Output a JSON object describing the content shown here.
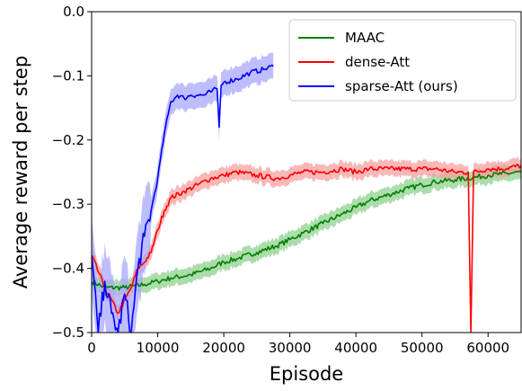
{
  "chart_data": {
    "type": "line",
    "title": "",
    "xlabel": "Episode",
    "ylabel": "Average reward per step",
    "xlim": [
      0,
      65000
    ],
    "ylim": [
      -0.5,
      0.0
    ],
    "xticks": [
      0,
      10000,
      20000,
      30000,
      40000,
      50000,
      60000
    ],
    "xtick_labels": [
      "0",
      "10000",
      "20000",
      "30000",
      "40000",
      "50000",
      "60000"
    ],
    "yticks": [
      -0.5,
      -0.4,
      -0.3,
      -0.2,
      -0.1,
      0.0
    ],
    "ytick_labels": [
      "−0.5",
      "−0.4",
      "−0.3",
      "−0.2",
      "−0.1",
      "0.0"
    ],
    "grid": false,
    "legend_position": "top-right",
    "series": [
      {
        "name": "MAAC",
        "color": "#008000",
        "band_color": "#90d090",
        "x": [
          0,
          2000,
          5000,
          8000,
          10000,
          12000,
          15000,
          18000,
          20000,
          22000,
          25000,
          28000,
          30000,
          32000,
          35000,
          38000,
          40000,
          42000,
          45000,
          48000,
          50000,
          52000,
          55000,
          58000,
          60000,
          62000,
          65000
        ],
        "y": [
          -0.42,
          -0.43,
          -0.43,
          -0.425,
          -0.42,
          -0.415,
          -0.41,
          -0.4,
          -0.39,
          -0.385,
          -0.375,
          -0.365,
          -0.355,
          -0.345,
          -0.33,
          -0.315,
          -0.305,
          -0.295,
          -0.285,
          -0.275,
          -0.27,
          -0.265,
          -0.262,
          -0.258,
          -0.255,
          -0.253,
          -0.25
        ]
      },
      {
        "name": "dense-Att",
        "color": "#ff0000",
        "band_color": "#f5a0a0",
        "x": [
          0,
          2000,
          4000,
          6000,
          7000,
          8000,
          9000,
          10000,
          11000,
          12000,
          14000,
          16000,
          18000,
          20000,
          22000,
          25000,
          28000,
          30000,
          32000,
          35000,
          38000,
          40000,
          42000,
          45000,
          48000,
          50000,
          52000,
          55000,
          57000,
          57400,
          57800,
          60000,
          62000,
          65000
        ],
        "y": [
          -0.38,
          -0.43,
          -0.47,
          -0.43,
          -0.4,
          -0.39,
          -0.375,
          -0.34,
          -0.31,
          -0.29,
          -0.28,
          -0.27,
          -0.26,
          -0.255,
          -0.25,
          -0.255,
          -0.26,
          -0.255,
          -0.25,
          -0.25,
          -0.245,
          -0.25,
          -0.245,
          -0.245,
          -0.245,
          -0.245,
          -0.245,
          -0.25,
          -0.25,
          -0.5,
          -0.25,
          -0.245,
          -0.245,
          -0.24
        ]
      },
      {
        "name": "sparse-Att (ours)",
        "color": "#0000ff",
        "band_color": "#a8a8ff",
        "x": [
          0,
          1000,
          2000,
          3000,
          4000,
          5000,
          6000,
          7000,
          8000,
          9000,
          10000,
          11000,
          12000,
          13000,
          14000,
          15000,
          16000,
          17000,
          18000,
          19000,
          19300,
          19600,
          20000,
          22000,
          24000,
          26000,
          27500
        ],
        "y": [
          -0.38,
          -0.5,
          -0.42,
          -0.47,
          -0.5,
          -0.44,
          -0.5,
          -0.4,
          -0.35,
          -0.31,
          -0.26,
          -0.19,
          -0.14,
          -0.13,
          -0.135,
          -0.13,
          -0.13,
          -0.13,
          -0.125,
          -0.12,
          -0.18,
          -0.115,
          -0.11,
          -0.105,
          -0.095,
          -0.09,
          -0.085
        ]
      }
    ]
  }
}
